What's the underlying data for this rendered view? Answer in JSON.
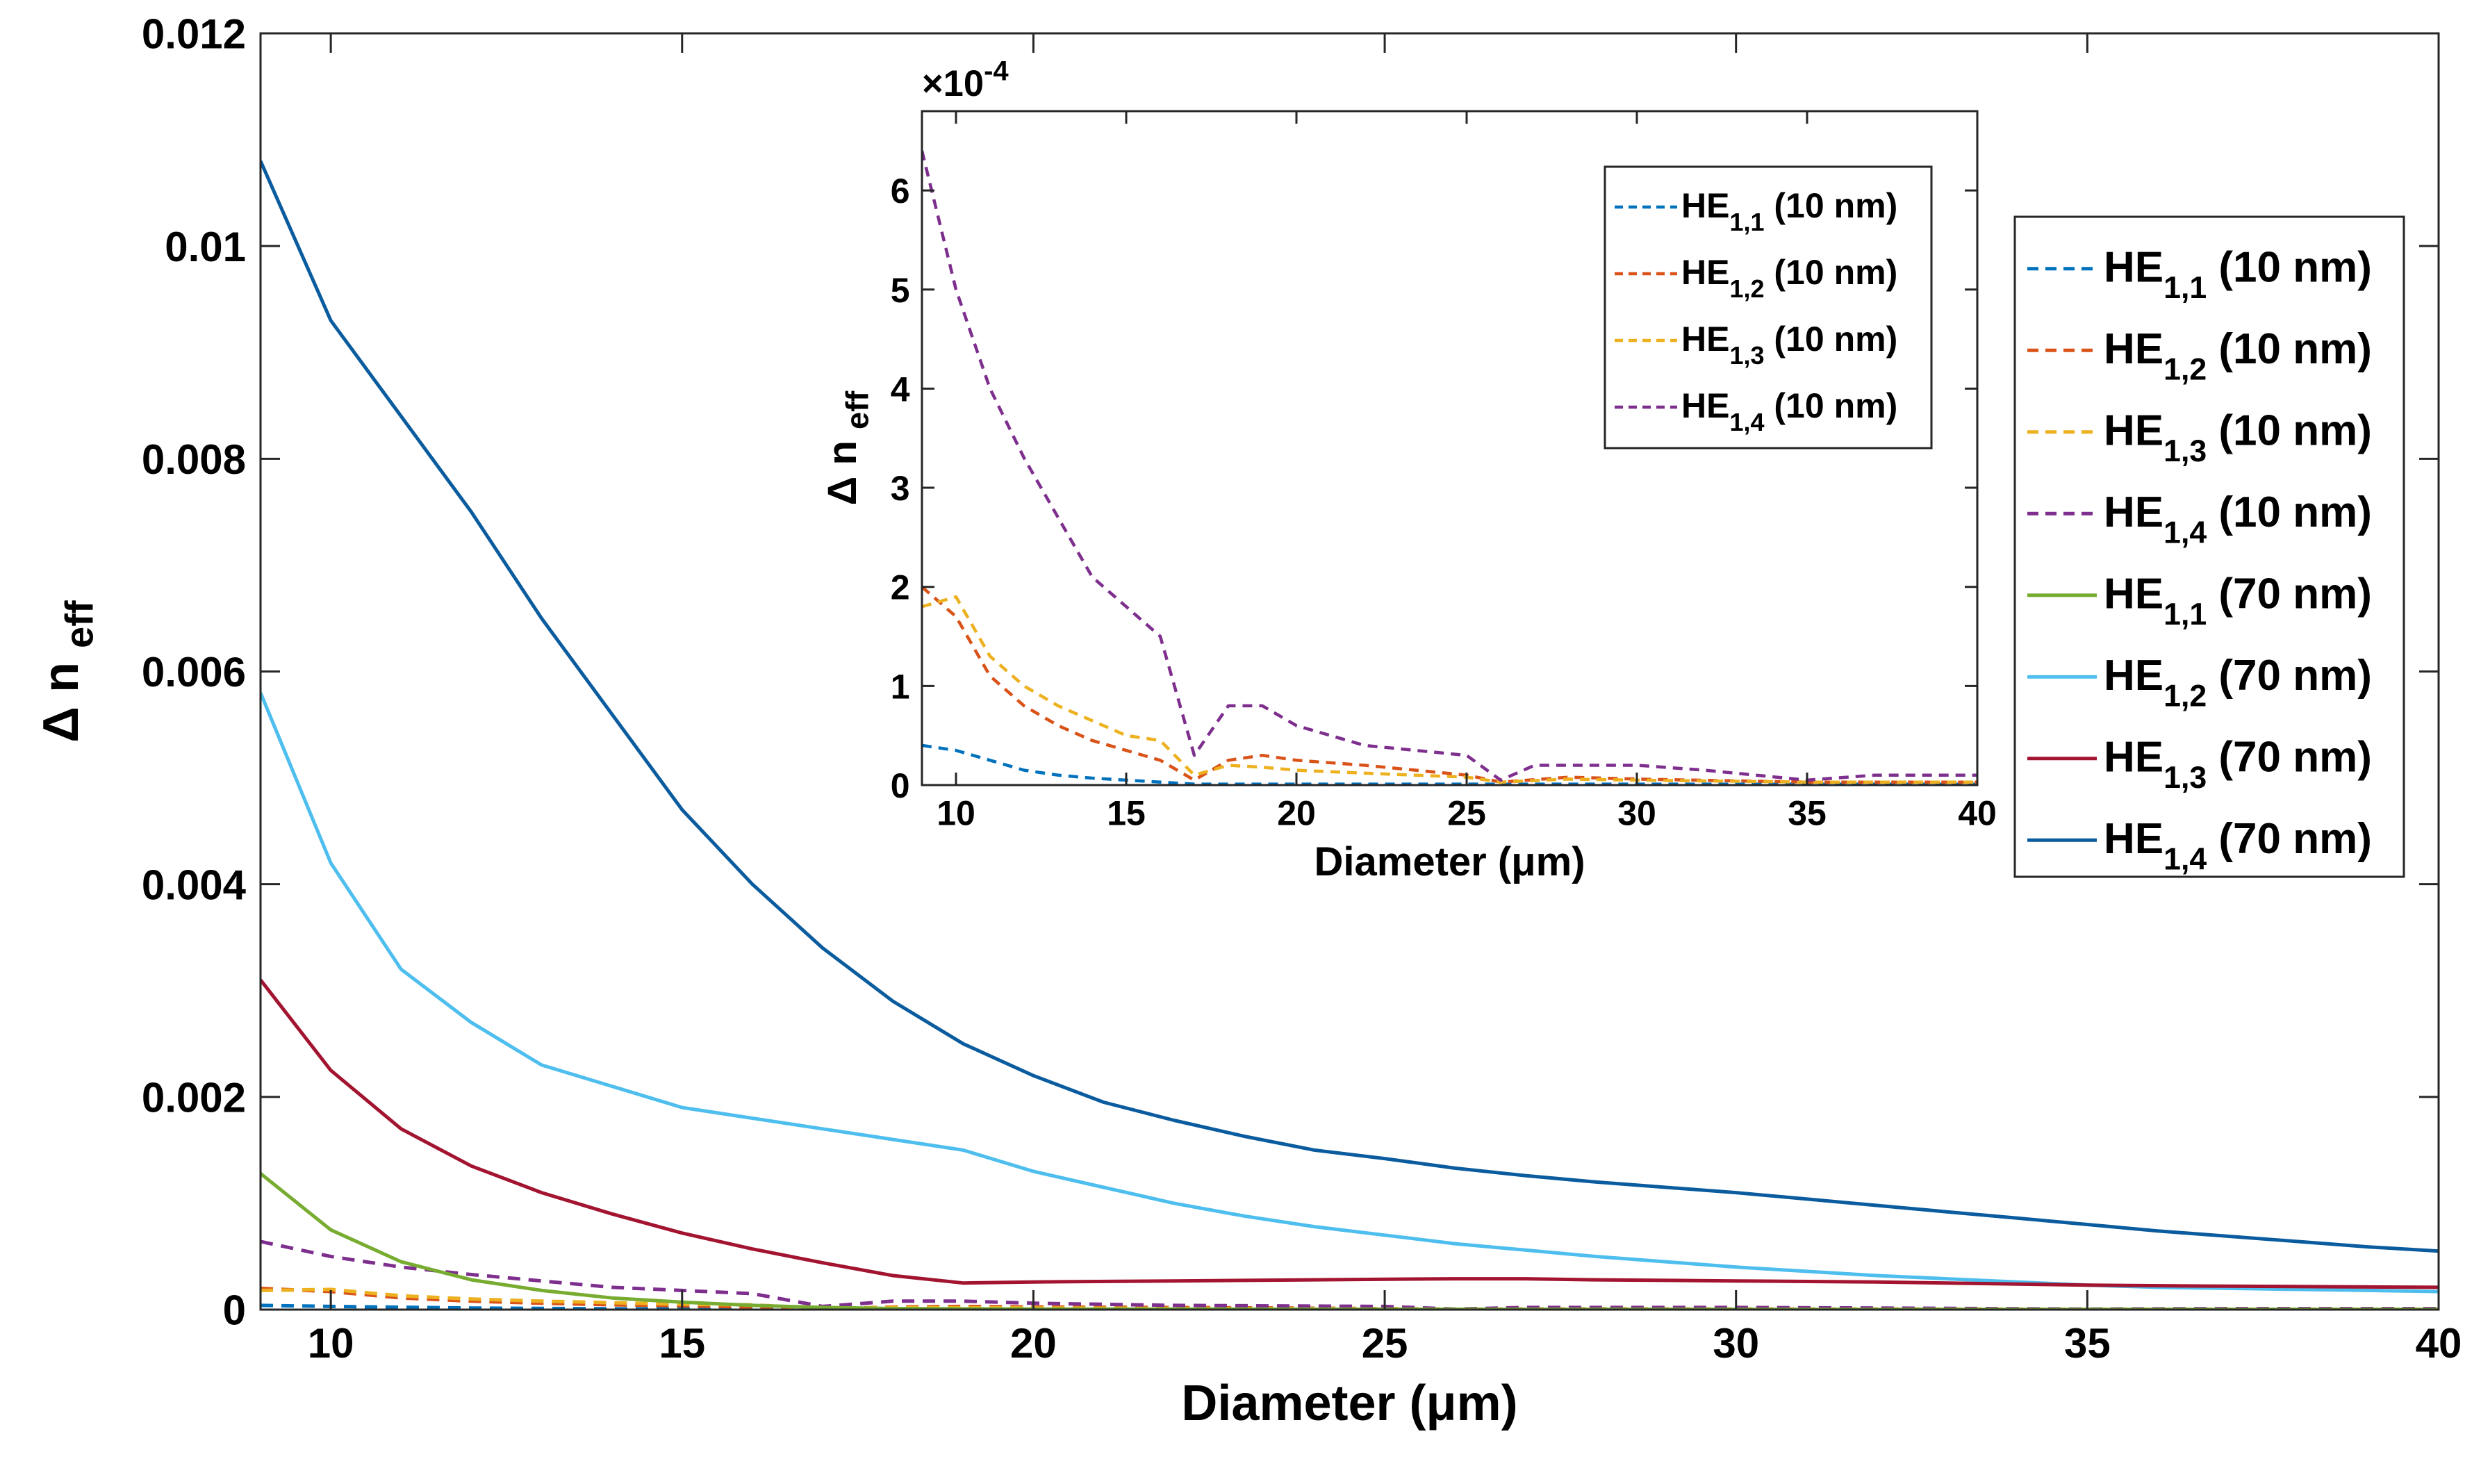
{
  "chart_data": [
    {
      "type": "line",
      "name": "main",
      "xlabel": "Diameter (μm)",
      "ylabel": "Δ n",
      "ylabel_sub": "eff",
      "xlim": [
        9,
        40
      ],
      "ylim": [
        0,
        0.012
      ],
      "xticks": [
        10,
        15,
        20,
        25,
        30,
        35,
        40
      ],
      "xtick_labels": [
        "10",
        "15",
        "20",
        "25",
        "30",
        "35",
        "40"
      ],
      "yticks": [
        0,
        0.002,
        0.004,
        0.006,
        0.008,
        0.01,
        0.012
      ],
      "ytick_labels": [
        "0",
        "0.002",
        "0.004",
        "0.006",
        "0.008",
        "0.01",
        "0.012"
      ],
      "legend_position": "right",
      "series": [
        {
          "name": "HE",
          "sub": "1,1",
          "suffix": " (10 nm)",
          "color": "#0072BD",
          "style": "dashed",
          "x": [
            9,
            10,
            12,
            14,
            16,
            17,
            20,
            25,
            30,
            35,
            40
          ],
          "y": [
            4e-05,
            3e-05,
            1.5e-05,
            8e-06,
            4e-06,
            2e-06,
            1e-06,
            1e-06,
            1e-06,
            1e-06,
            1e-06
          ]
        },
        {
          "name": "HE",
          "sub": "1,2",
          "suffix": " (10 nm)",
          "color": "#D95319",
          "style": "dashed",
          "x": [
            9,
            10,
            11,
            12,
            13,
            14,
            15,
            16,
            17,
            18,
            19,
            20,
            22,
            25,
            26,
            28,
            30,
            35,
            40
          ],
          "y": [
            0.0002,
            0.00017,
            0.00011,
            8e-05,
            6e-05,
            4.5e-05,
            3.5e-05,
            2.5e-05,
            5e-06,
            2.5e-05,
            3e-05,
            2.5e-05,
            2e-05,
            1e-05,
            3e-06,
            8e-06,
            6e-06,
            3e-06,
            3e-06
          ]
        },
        {
          "name": "HE",
          "sub": "1,3",
          "suffix": " (10 nm)",
          "color": "#EDB120",
          "style": "dashed",
          "x": [
            9,
            10,
            11,
            12,
            13,
            14,
            15,
            16,
            17,
            18,
            19,
            20,
            22,
            25,
            26,
            28,
            30,
            35,
            40
          ],
          "y": [
            0.00018,
            0.00019,
            0.00013,
            0.0001,
            8e-05,
            6.5e-05,
            5e-05,
            4.5e-05,
            1e-05,
            2e-05,
            1.8e-05,
            1.5e-05,
            1.2e-05,
            8e-06,
            3e-06,
            6e-06,
            5e-06,
            3e-06,
            3e-06
          ]
        },
        {
          "name": "HE",
          "sub": "1,4",
          "suffix": " (10 nm)",
          "color": "#7E2F8E",
          "style": "dashed",
          "x": [
            9,
            10,
            11,
            12,
            13,
            14,
            15,
            16,
            17,
            18,
            19,
            20,
            22,
            25,
            26,
            27,
            30,
            32,
            35,
            37,
            40
          ],
          "y": [
            0.00064,
            0.0005,
            0.0004,
            0.00033,
            0.00027,
            0.00021,
            0.00018,
            0.00015,
            3e-05,
            8e-05,
            8e-05,
            6e-05,
            4e-05,
            3e-05,
            5e-06,
            2e-05,
            2e-05,
            1.5e-05,
            5e-06,
            1e-05,
            1e-05
          ]
        },
        {
          "name": "HE",
          "sub": "1,1",
          "suffix": " (70 nm)",
          "color": "#77AC30",
          "style": "solid",
          "x": [
            9,
            10,
            11,
            12,
            13,
            14,
            15,
            16,
            17,
            18,
            20,
            25,
            30,
            35,
            40
          ],
          "y": [
            0.00128,
            0.00075,
            0.00045,
            0.00028,
            0.00018,
            0.00011,
            7e-05,
            4e-05,
            2e-05,
            1e-05,
            5e-06,
            3e-06,
            2e-06,
            2e-06,
            2e-06
          ]
        },
        {
          "name": "HE",
          "sub": "1,2",
          "suffix": " (70 nm)",
          "color": "#4DBEEE",
          "style": "solid",
          "x": [
            9,
            10,
            11,
            12,
            13,
            14,
            15,
            16,
            17,
            18,
            19,
            20,
            21,
            22,
            23,
            24,
            25,
            26,
            27,
            28,
            29,
            30,
            31,
            32,
            33,
            34,
            35,
            36,
            37,
            38,
            39,
            40
          ],
          "y": [
            0.0058,
            0.0042,
            0.0032,
            0.0027,
            0.0023,
            0.0021,
            0.0019,
            0.0018,
            0.0017,
            0.0016,
            0.0015,
            0.0013,
            0.00115,
            0.001,
            0.00088,
            0.00078,
            0.0007,
            0.00062,
            0.00056,
            0.0005,
            0.00045,
            0.0004,
            0.00036,
            0.00032,
            0.00029,
            0.00026,
            0.00023,
            0.00021,
            0.0002,
            0.00019,
            0.00018,
            0.00017
          ]
        },
        {
          "name": "HE",
          "sub": "1,3",
          "suffix": " (70 nm)",
          "color": "#A2142F",
          "style": "solid",
          "x": [
            9,
            10,
            11,
            12,
            13,
            14,
            15,
            16,
            17,
            18,
            19,
            20,
            22,
            24,
            26,
            27,
            28,
            30,
            32,
            35,
            37,
            40
          ],
          "y": [
            0.0031,
            0.00225,
            0.0017,
            0.00135,
            0.0011,
            0.0009,
            0.00072,
            0.00057,
            0.00044,
            0.00032,
            0.00025,
            0.00026,
            0.00027,
            0.00028,
            0.00029,
            0.00029,
            0.00028,
            0.00027,
            0.00026,
            0.00023,
            0.00022,
            0.00021
          ]
        },
        {
          "name": "HE",
          "sub": "1,4",
          "suffix": " (70 nm)",
          "color": "#0A5C9E",
          "style": "solid",
          "x": [
            9,
            10,
            11,
            12,
            13,
            14,
            15,
            16,
            17,
            18,
            19,
            20,
            21,
            22,
            23,
            24,
            25,
            26,
            27,
            28,
            29,
            30,
            31,
            32,
            33,
            34,
            35,
            36,
            37,
            38,
            39,
            40
          ],
          "y": [
            0.0108,
            0.0093,
            0.0084,
            0.0075,
            0.0065,
            0.0056,
            0.0047,
            0.004,
            0.0034,
            0.0029,
            0.0025,
            0.0022,
            0.00195,
            0.00178,
            0.00163,
            0.0015,
            0.00142,
            0.00133,
            0.00126,
            0.0012,
            0.00115,
            0.0011,
            0.00104,
            0.00098,
            0.00092,
            0.00086,
            0.0008,
            0.00074,
            0.00069,
            0.00064,
            0.00059,
            0.00055
          ]
        }
      ]
    },
    {
      "type": "line",
      "name": "inset",
      "xlabel": "Diameter (μm)",
      "ylabel": "Δ n",
      "ylabel_sub": "eff",
      "exponent_label": "×10",
      "exponent": "-4",
      "xlim": [
        9,
        40
      ],
      "ylim": [
        0,
        6.8
      ],
      "xticks": [
        10,
        15,
        20,
        25,
        30,
        35,
        40
      ],
      "xtick_labels": [
        "10",
        "15",
        "20",
        "25",
        "30",
        "35",
        "40"
      ],
      "yticks": [
        0,
        1,
        2,
        3,
        4,
        5,
        6
      ],
      "ytick_labels": [
        "0",
        "1",
        "2",
        "3",
        "4",
        "5",
        "6"
      ],
      "legend_position": "top-right",
      "series": [
        {
          "name": "HE",
          "sub": "1,1",
          "suffix": " (10 nm)",
          "color": "#0072BD",
          "style": "dashed",
          "x": [
            9,
            10,
            11,
            12,
            13,
            14,
            15,
            16,
            17,
            20,
            25,
            30,
            35,
            40
          ],
          "y": [
            0.4,
            0.35,
            0.25,
            0.15,
            0.1,
            0.07,
            0.05,
            0.03,
            0.01,
            0.01,
            0.01,
            0.01,
            0.01,
            0.01
          ]
        },
        {
          "name": "HE",
          "sub": "1,2",
          "suffix": " (10 nm)",
          "color": "#D95319",
          "style": "dashed",
          "x": [
            9,
            10,
            11,
            12,
            13,
            14,
            15,
            16,
            17,
            18,
            19,
            20,
            22,
            25,
            26,
            28,
            30,
            35,
            40
          ],
          "y": [
            2.0,
            1.7,
            1.1,
            0.8,
            0.6,
            0.45,
            0.35,
            0.25,
            0.05,
            0.25,
            0.3,
            0.25,
            0.2,
            0.1,
            0.03,
            0.08,
            0.06,
            0.03,
            0.03
          ]
        },
        {
          "name": "HE",
          "sub": "1,3",
          "suffix": " (10 nm)",
          "color": "#EDB120",
          "style": "dashed",
          "x": [
            9,
            10,
            11,
            12,
            13,
            14,
            15,
            16,
            17,
            18,
            19,
            20,
            22,
            25,
            26,
            28,
            30,
            35,
            40
          ],
          "y": [
            1.8,
            1.9,
            1.3,
            1.0,
            0.8,
            0.65,
            0.5,
            0.45,
            0.1,
            0.2,
            0.18,
            0.15,
            0.12,
            0.08,
            0.03,
            0.06,
            0.05,
            0.03,
            0.03
          ]
        },
        {
          "name": "HE",
          "sub": "1,4",
          "suffix": " (10 nm)",
          "color": "#7E2F8E",
          "style": "dashed",
          "x": [
            9,
            10,
            11,
            12,
            13,
            14,
            15,
            16,
            17,
            18,
            19,
            20,
            22,
            25,
            26,
            27,
            30,
            32,
            35,
            37,
            40
          ],
          "y": [
            6.4,
            5.0,
            4.0,
            3.3,
            2.7,
            2.1,
            1.8,
            1.5,
            0.3,
            0.8,
            0.8,
            0.6,
            0.4,
            0.3,
            0.05,
            0.2,
            0.2,
            0.15,
            0.05,
            0.1,
            0.1
          ]
        }
      ]
    }
  ]
}
